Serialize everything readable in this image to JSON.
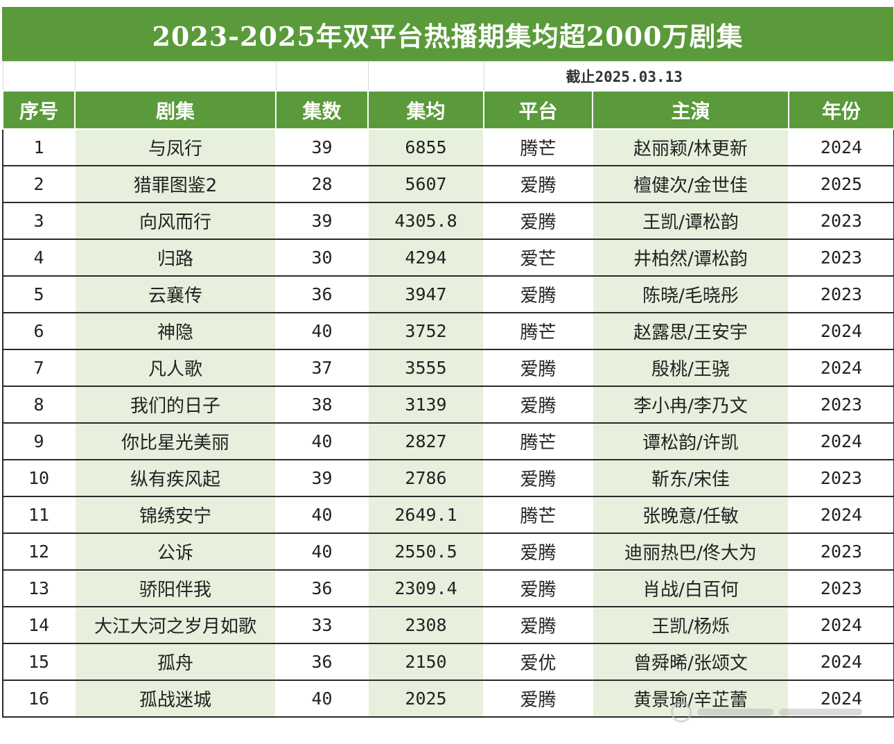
{
  "title": "2023-2025年双平台热播期集均超2000万剧集",
  "cutoff_note": "截止2025.03.13",
  "columns": [
    "序号",
    "剧集",
    "集数",
    "集均",
    "平台",
    "主演",
    "年份"
  ],
  "rows": [
    {
      "rank": "1",
      "drama": "与凤行",
      "episodes": "39",
      "avg": "6855",
      "platform": "腾芒",
      "cast": "赵丽颖/林更新",
      "year": "2024"
    },
    {
      "rank": "2",
      "drama": "猎罪图鉴2",
      "episodes": "28",
      "avg": "5607",
      "platform": "爱腾",
      "cast": "檀健次/金世佳",
      "year": "2025"
    },
    {
      "rank": "3",
      "drama": "向风而行",
      "episodes": "39",
      "avg": "4305.8",
      "platform": "爱腾",
      "cast": "王凯/谭松韵",
      "year": "2023"
    },
    {
      "rank": "4",
      "drama": "归路",
      "episodes": "30",
      "avg": "4294",
      "platform": "爱芒",
      "cast": "井柏然/谭松韵",
      "year": "2023"
    },
    {
      "rank": "5",
      "drama": "云襄传",
      "episodes": "36",
      "avg": "3947",
      "platform": "爱腾",
      "cast": "陈晓/毛晓彤",
      "year": "2023"
    },
    {
      "rank": "6",
      "drama": "神隐",
      "episodes": "40",
      "avg": "3752",
      "platform": "腾芒",
      "cast": "赵露思/王安宇",
      "year": "2024"
    },
    {
      "rank": "7",
      "drama": "凡人歌",
      "episodes": "37",
      "avg": "3555",
      "platform": "爱腾",
      "cast": "殷桃/王骁",
      "year": "2024"
    },
    {
      "rank": "8",
      "drama": "我们的日子",
      "episodes": "38",
      "avg": "3139",
      "platform": "爱腾",
      "cast": "李小冉/李乃文",
      "year": "2023"
    },
    {
      "rank": "9",
      "drama": "你比星光美丽",
      "episodes": "40",
      "avg": "2827",
      "platform": "腾芒",
      "cast": "谭松韵/许凯",
      "year": "2024"
    },
    {
      "rank": "10",
      "drama": "纵有疾风起",
      "episodes": "39",
      "avg": "2786",
      "platform": "爱腾",
      "cast": "靳东/宋佳",
      "year": "2023"
    },
    {
      "rank": "11",
      "drama": "锦绣安宁",
      "episodes": "40",
      "avg": "2649.1",
      "platform": "腾芒",
      "cast": "张晚意/任敏",
      "year": "2024"
    },
    {
      "rank": "12",
      "drama": "公诉",
      "episodes": "40",
      "avg": "2550.5",
      "platform": "爱腾",
      "cast": "迪丽热巴/佟大为",
      "year": "2023"
    },
    {
      "rank": "13",
      "drama": "骄阳伴我",
      "episodes": "36",
      "avg": "2309.4",
      "platform": "爱腾",
      "cast": "肖战/白百何",
      "year": "2023"
    },
    {
      "rank": "14",
      "drama": "大江大河之岁月如歌",
      "episodes": "33",
      "avg": "2308",
      "platform": "爱腾",
      "cast": "王凯/杨烁",
      "year": "2024"
    },
    {
      "rank": "15",
      "drama": "孤舟",
      "episodes": "36",
      "avg": "2150",
      "platform": "爱优",
      "cast": "曾舜晞/张颂文",
      "year": "2024"
    },
    {
      "rank": "16",
      "drama": "孤战迷城",
      "episodes": "40",
      "avg": "2025",
      "platform": "爱腾",
      "cast": "黄景瑜/辛芷蕾",
      "year": "2024"
    }
  ],
  "colors": {
    "header_green": "#5a9a3a",
    "shade_green": "#e6f0dc"
  }
}
